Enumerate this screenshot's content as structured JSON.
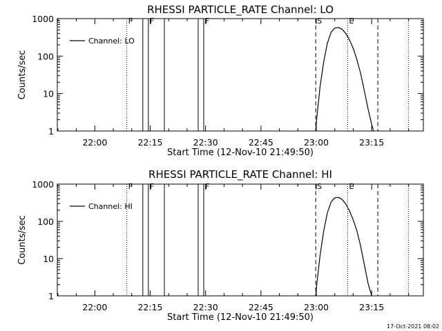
{
  "window": {
    "title": "RHESSI PARTICLE_RATE"
  },
  "footer": {
    "timestamp": "17-Oct-2021 08:02"
  },
  "colors": {
    "background": "#ffffff",
    "foreground": "#000000"
  },
  "chart_data": [
    {
      "type": "line",
      "title": "RHESSI PARTICLE_RATE Channel: LO",
      "xlabel": "Start Time (12-Nov-10 21:49:50)",
      "ylabel": "Counts/sec",
      "y_scale": "log",
      "xlim": [
        "21:49:50",
        "23:29:00"
      ],
      "ylim": [
        1,
        1000
      ],
      "x_ticks": [
        "22:00",
        "22:15",
        "22:30",
        "22:45",
        "23:00",
        "23:15"
      ],
      "y_ticks": [
        "1",
        "10",
        "100",
        "1000"
      ],
      "grid": false,
      "legend": {
        "placement": "top-left",
        "entries": [
          "Channel: LO"
        ]
      },
      "series": [
        {
          "name": "Channel: LO",
          "x": [
            "22:59:50",
            "23:00:10",
            "23:01:00",
            "23:02:00",
            "23:03:00",
            "23:04:00",
            "23:05:00",
            "23:06:00",
            "23:07:00",
            "23:08:00",
            "23:09:00",
            "23:10:00",
            "23:11:00",
            "23:12:00",
            "23:13:00",
            "23:14:00",
            "23:15:00",
            "23:15:30"
          ],
          "y": [
            1,
            2.5,
            15,
            70,
            220,
            430,
            560,
            580,
            520,
            400,
            270,
            160,
            80,
            35,
            12,
            4,
            1.5,
            1
          ]
        }
      ],
      "vertical_lines": [
        {
          "time": "22:08:40",
          "style": "dotted",
          "label": "F"
        },
        {
          "time": "22:13:00",
          "style": "solid",
          "label": ""
        },
        {
          "time": "22:14:30",
          "style": "solid",
          "label": "F"
        },
        {
          "time": "22:18:50",
          "style": "solid",
          "label": ""
        },
        {
          "time": "22:28:00",
          "style": "solid",
          "label": ""
        },
        {
          "time": "22:29:30",
          "style": "solid",
          "label": "F"
        },
        {
          "time": "22:59:50",
          "style": "dashed",
          "label": "S"
        },
        {
          "time": "23:08:30",
          "style": "dotted",
          "label": "E"
        },
        {
          "time": "23:16:40",
          "style": "dashed",
          "label": ""
        },
        {
          "time": "23:25:00",
          "style": "dotted",
          "label": ""
        }
      ]
    },
    {
      "type": "line",
      "title": "RHESSI PARTICLE_RATE Channel: HI",
      "xlabel": "Start Time (12-Nov-10 21:49:50)",
      "ylabel": "Counts/sec",
      "y_scale": "log",
      "xlim": [
        "21:49:50",
        "23:29:00"
      ],
      "ylim": [
        1,
        1000
      ],
      "x_ticks": [
        "22:00",
        "22:15",
        "22:30",
        "22:45",
        "23:00",
        "23:15"
      ],
      "y_ticks": [
        "1",
        "10",
        "100",
        "1000"
      ],
      "grid": false,
      "legend": {
        "placement": "top-left",
        "entries": [
          "Channel: HI"
        ]
      },
      "series": [
        {
          "name": "Channel: HI",
          "x": [
            "22:59:50",
            "23:00:10",
            "23:01:00",
            "23:02:00",
            "23:03:00",
            "23:04:00",
            "23:05:00",
            "23:06:00",
            "23:07:00",
            "23:08:00",
            "23:09:00",
            "23:10:00",
            "23:11:00",
            "23:12:00",
            "23:13:00",
            "23:14:00",
            "23:15:00"
          ],
          "y": [
            1,
            2.2,
            12,
            55,
            170,
            330,
            430,
            440,
            390,
            290,
            190,
            110,
            55,
            22,
            7,
            2.2,
            1
          ]
        }
      ],
      "vertical_lines": [
        {
          "time": "22:08:40",
          "style": "dotted",
          "label": "F"
        },
        {
          "time": "22:13:00",
          "style": "solid",
          "label": ""
        },
        {
          "time": "22:14:30",
          "style": "solid",
          "label": "F"
        },
        {
          "time": "22:18:50",
          "style": "solid",
          "label": ""
        },
        {
          "time": "22:28:00",
          "style": "solid",
          "label": ""
        },
        {
          "time": "22:29:30",
          "style": "solid",
          "label": "F"
        },
        {
          "time": "22:59:50",
          "style": "dashed",
          "label": "S"
        },
        {
          "time": "23:08:30",
          "style": "dotted",
          "label": "E"
        },
        {
          "time": "23:16:40",
          "style": "dashed",
          "label": ""
        },
        {
          "time": "23:25:00",
          "style": "dotted",
          "label": ""
        }
      ]
    }
  ]
}
